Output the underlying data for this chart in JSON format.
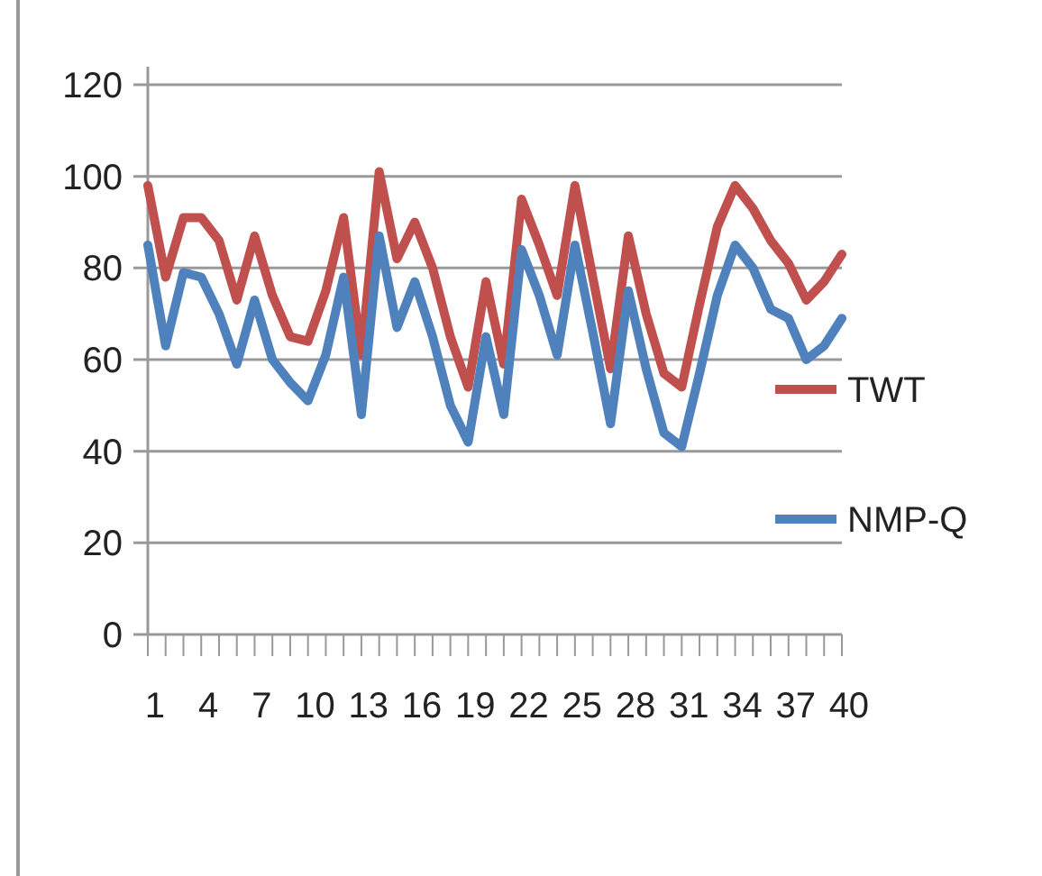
{
  "chart_data": {
    "type": "line",
    "categories": [
      "1",
      null,
      null,
      "4",
      null,
      null,
      "7",
      null,
      null,
      "10",
      null,
      null,
      "13",
      null,
      null,
      "16",
      null,
      null,
      "19",
      null,
      null,
      "22",
      null,
      null,
      "25",
      null,
      null,
      "28",
      null,
      null,
      "31",
      null,
      null,
      "34",
      null,
      null,
      "37",
      null,
      null,
      "40"
    ],
    "series": [
      {
        "name": "TWT",
        "color": "#c0504d",
        "values": [
          98,
          78,
          91,
          91,
          86,
          73,
          87,
          74,
          65,
          64,
          75,
          91,
          61,
          101,
          82,
          90,
          80,
          65,
          54,
          77,
          59,
          95,
          85,
          74,
          98,
          78,
          58,
          87,
          70,
          57,
          54,
          72,
          89,
          98,
          93,
          86,
          81,
          73,
          77,
          83
        ]
      },
      {
        "name": "NMP-Q",
        "color": "#4f81bd",
        "values": [
          85,
          63,
          79,
          78,
          70,
          59,
          73,
          60,
          55,
          51,
          61,
          78,
          48,
          87,
          67,
          77,
          65,
          50,
          42,
          65,
          48,
          84,
          74,
          61,
          85,
          66,
          46,
          75,
          58,
          44,
          41,
          57,
          74,
          85,
          80,
          71,
          69,
          60,
          63,
          69
        ]
      }
    ],
    "ylim": [
      0,
      120
    ],
    "yticks": [
      0,
      20,
      40,
      60,
      80,
      100,
      120
    ],
    "grid": "y",
    "legend": "right",
    "marker": "none",
    "line_style": "solid"
  }
}
